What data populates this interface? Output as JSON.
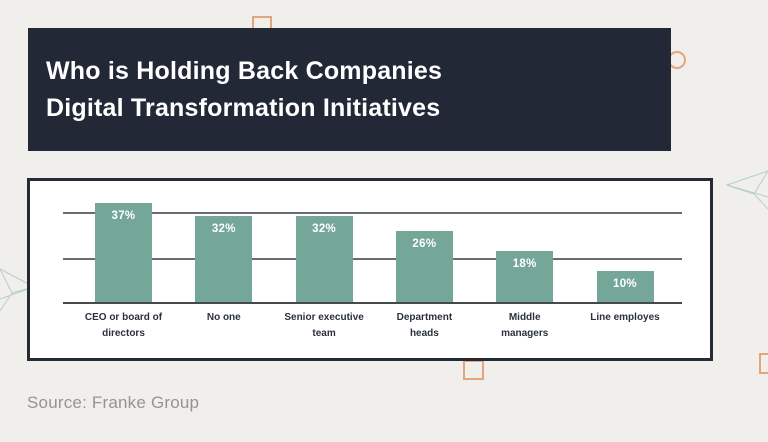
{
  "page": {
    "background_color": "#f1efec"
  },
  "header": {
    "title_line1": "Who is Holding Back Companies",
    "title_line2": "Digital Transformation Initiatives",
    "background_color": "#222836",
    "text_color": "#ffffff"
  },
  "chart_data": {
    "type": "bar",
    "title": "Who is Holding Back Companies Digital Transformation Initiatives",
    "categories": [
      "CEO or board of directors",
      "No one",
      "Senior executive team",
      "Department heads",
      "Middle managers",
      "Line employes"
    ],
    "categories_display": [
      "CEO or board of\ndirectors",
      "No one",
      "Senior executive\nteam",
      "Department\nheads",
      "Middle\nmanagers",
      "Line employes"
    ],
    "values": [
      37,
      32,
      32,
      26,
      18,
      10
    ],
    "value_labels": [
      "37%",
      "32%",
      "32%",
      "26%",
      "18%",
      "10%"
    ],
    "xlabel": "",
    "ylabel": "",
    "ylim": [
      0,
      45
    ],
    "grid": "horizontal",
    "legend": "none",
    "bar_color": "#75a799",
    "value_label_color": "#ffffff",
    "gridline_color": "#696d73",
    "axis_color": "#45484e"
  },
  "source": {
    "text": "Source: Franke Group"
  },
  "decor": {
    "accent_orange": "#e4a57d",
    "accent_teal": "#b8cfc5",
    "shapes": [
      "square-outline-top",
      "circle-outline",
      "paper-plane-right",
      "paper-plane-left",
      "square-outline-bottom",
      "square-outline-right-edge"
    ]
  }
}
